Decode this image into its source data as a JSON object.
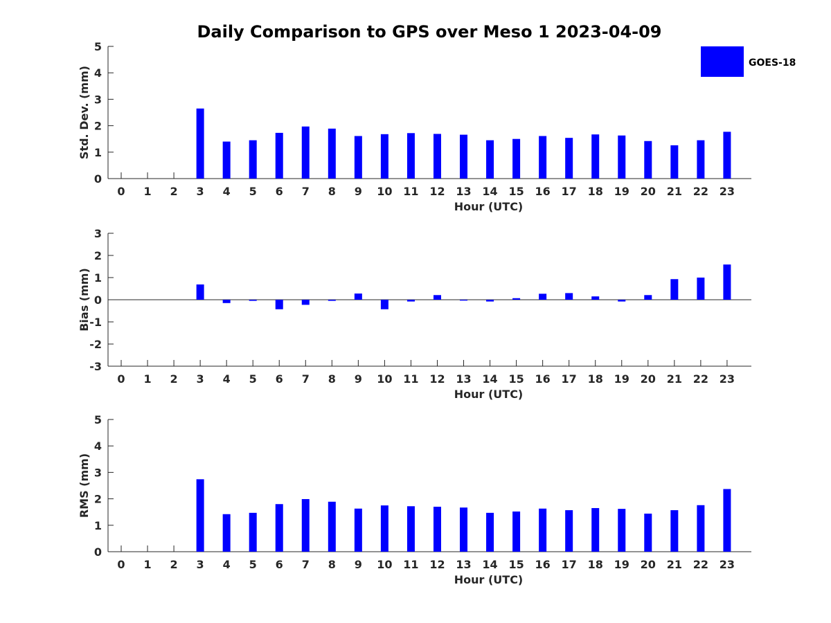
{
  "title": "Daily Comparison to GPS over Meso 1 2023-04-09",
  "legend": {
    "label": "GOES-18",
    "color": "#0000ff",
    "position": "top-right"
  },
  "chart_data": [
    {
      "type": "bar",
      "ylabel": "Std. Dev. (mm)",
      "xlabel": "Hour (UTC)",
      "ylim": [
        0,
        5
      ],
      "yticks": [
        0,
        1,
        2,
        3,
        4,
        5
      ],
      "categories": [
        "0",
        "1",
        "2",
        "3",
        "4",
        "5",
        "6",
        "7",
        "8",
        "9",
        "10",
        "11",
        "12",
        "13",
        "14",
        "15",
        "16",
        "17",
        "18",
        "19",
        "20",
        "21",
        "22",
        "23"
      ],
      "series": [
        {
          "name": "GOES-18",
          "values": [
            null,
            null,
            null,
            2.65,
            1.4,
            1.45,
            1.73,
            1.97,
            1.89,
            1.61,
            1.68,
            1.72,
            1.69,
            1.66,
            1.45,
            1.5,
            1.61,
            1.54,
            1.67,
            1.63,
            1.42,
            1.26,
            1.45,
            1.77
          ]
        }
      ]
    },
    {
      "type": "bar",
      "ylabel": "Bias (mm)",
      "xlabel": "Hour (UTC)",
      "ylim": [
        -3,
        3
      ],
      "yticks": [
        -3,
        -2,
        -1,
        0,
        1,
        2,
        3
      ],
      "categories": [
        "0",
        "1",
        "2",
        "3",
        "4",
        "5",
        "6",
        "7",
        "8",
        "9",
        "10",
        "11",
        "12",
        "13",
        "14",
        "15",
        "16",
        "17",
        "18",
        "19",
        "20",
        "21",
        "22",
        "23"
      ],
      "series": [
        {
          "name": "GOES-18",
          "values": [
            null,
            null,
            null,
            0.69,
            -0.15,
            -0.05,
            -0.43,
            -0.23,
            -0.05,
            0.28,
            -0.43,
            -0.08,
            0.21,
            -0.04,
            -0.08,
            0.07,
            0.27,
            0.3,
            0.15,
            -0.08,
            0.21,
            0.93,
            1.0,
            1.59
          ]
        }
      ]
    },
    {
      "type": "bar",
      "ylabel": "RMS (mm)",
      "xlabel": "Hour (UTC)",
      "ylim": [
        0,
        5
      ],
      "yticks": [
        0,
        1,
        2,
        3,
        4,
        5
      ],
      "categories": [
        "0",
        "1",
        "2",
        "3",
        "4",
        "5",
        "6",
        "7",
        "8",
        "9",
        "10",
        "11",
        "12",
        "13",
        "14",
        "15",
        "16",
        "17",
        "18",
        "19",
        "20",
        "21",
        "22",
        "23"
      ],
      "series": [
        {
          "name": "GOES-18",
          "values": [
            null,
            null,
            null,
            2.74,
            1.42,
            1.47,
            1.8,
            1.99,
            1.89,
            1.63,
            1.75,
            1.72,
            1.7,
            1.67,
            1.47,
            1.52,
            1.63,
            1.57,
            1.65,
            1.62,
            1.44,
            1.57,
            1.76,
            2.37
          ]
        }
      ]
    }
  ]
}
